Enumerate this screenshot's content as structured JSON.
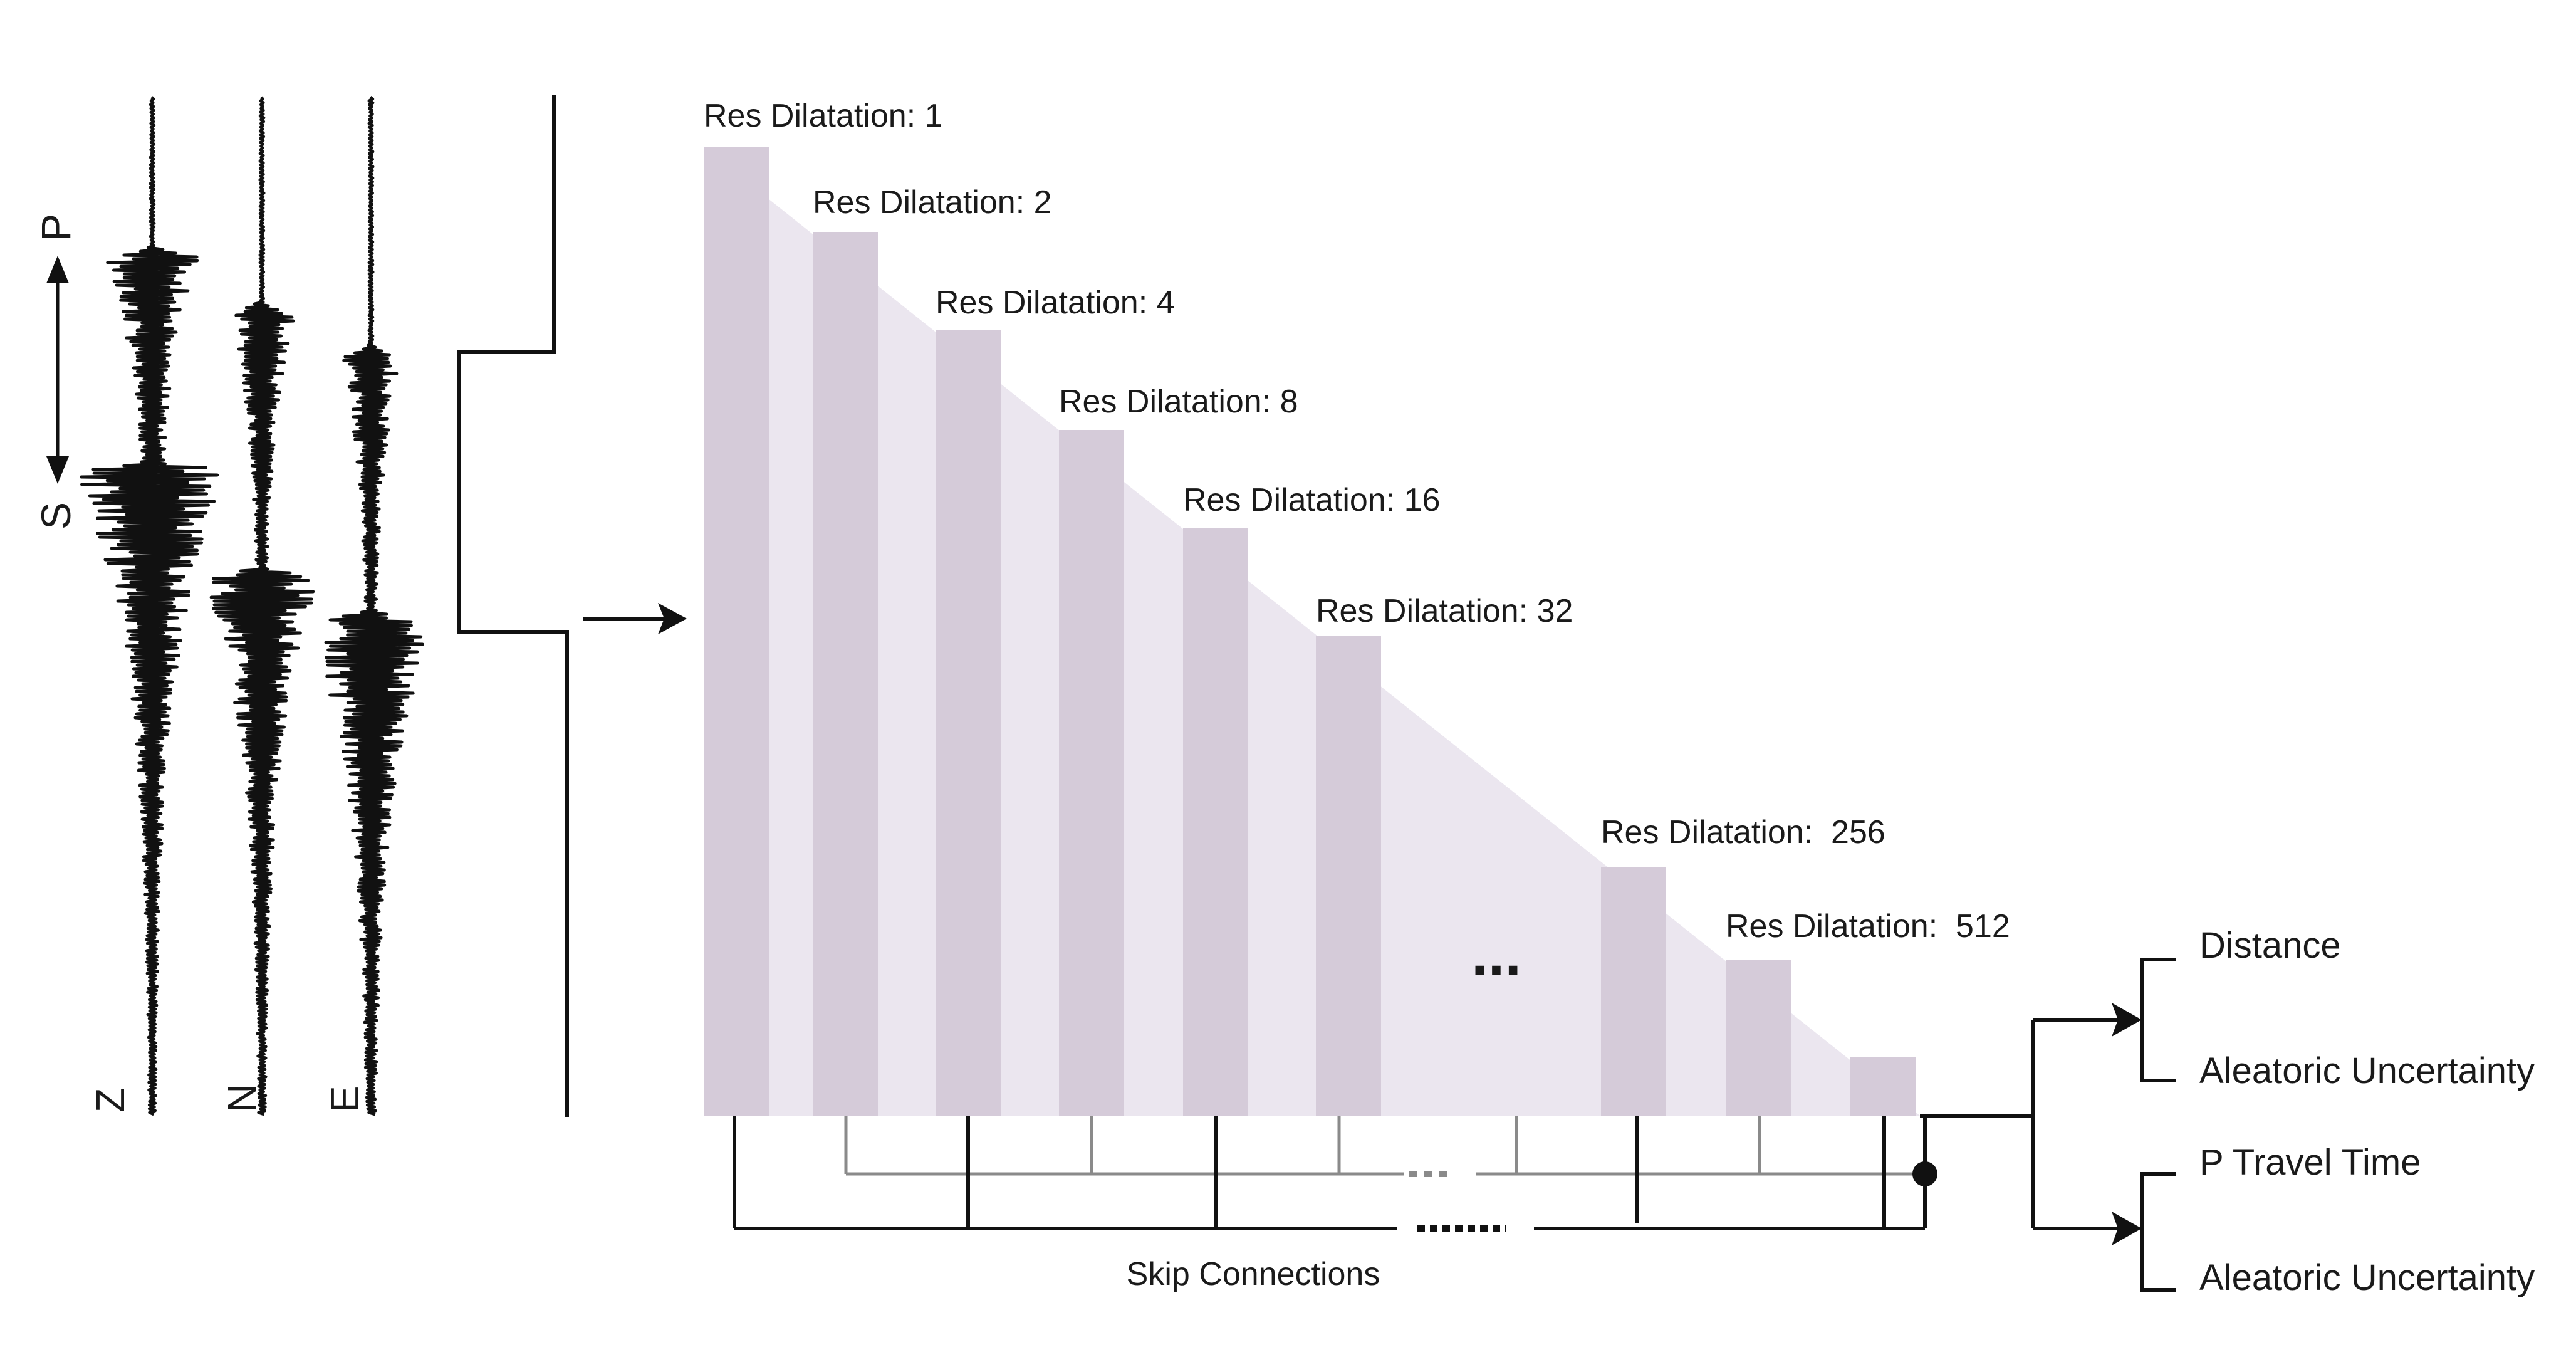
{
  "seismogram": {
    "channels": [
      "Z",
      "N",
      "E"
    ],
    "phase_p": "P",
    "phase_s": "S"
  },
  "network": {
    "blocks": [
      {
        "label": "Res Dilatation: 1"
      },
      {
        "label": "Res Dilatation: 2"
      },
      {
        "label": "Res Dilatation: 4"
      },
      {
        "label": "Res Dilatation: 8"
      },
      {
        "label": "Res Dilatation: 16"
      },
      {
        "label": "Res Dilatation: 32"
      },
      {
        "label": ""
      },
      {
        "label": "Res Dilatation:  256"
      },
      {
        "label": "Res Dilatation:  512"
      },
      {
        "label": ""
      }
    ],
    "ellipsis": "...",
    "skip_label": "Skip Connections"
  },
  "outputs": {
    "upper": [
      "Distance",
      "Aleatoric Uncertainty"
    ],
    "lower": [
      "P Travel Time",
      "Aleatoric Uncertainty"
    ]
  },
  "colors": {
    "block": "#d5cbd9",
    "wedge": "#ebe6ef",
    "ink": "#1a1a1a",
    "skip_gray": "#8a8a8a"
  }
}
